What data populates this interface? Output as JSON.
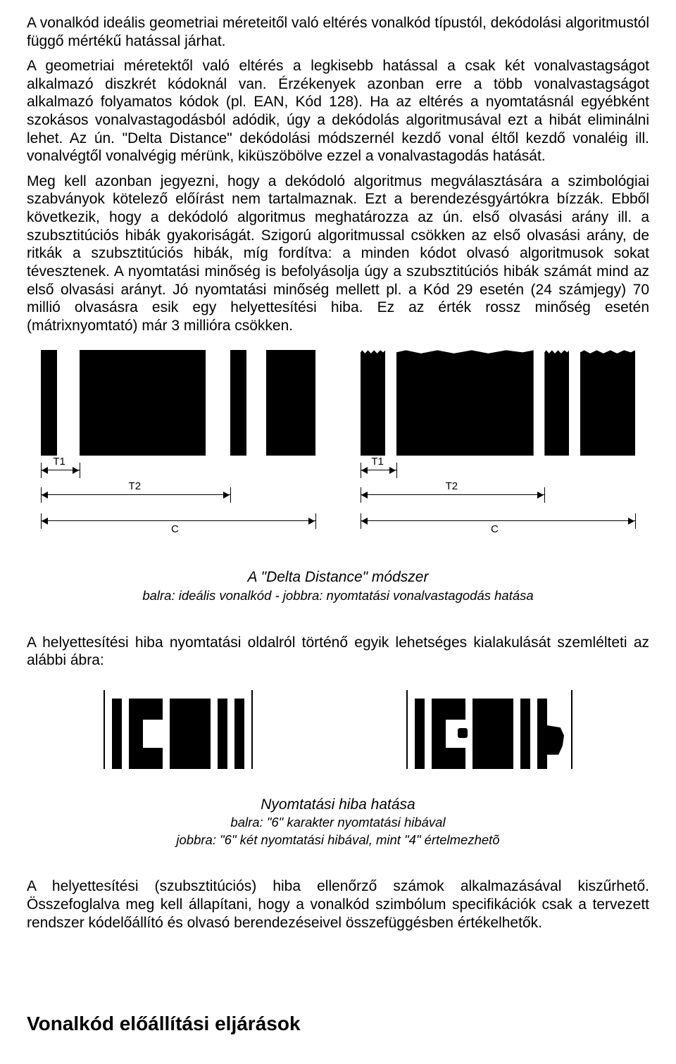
{
  "paragraph1": "A vonalkód ideális geometriai méreteitől való eltérés vonalkód típustól, dekódolási algoritmustól függő mértékű hatással járhat.",
  "paragraph2": "A geometriai méretektől való eltérés a legkisebb hatással a csak két vonalvastagságot alkalmazó diszkrét kódoknál van. Érzékenyek azonban erre a több vonalvastagságot alkalmazó folyamatos kódok (pl. EAN, Kód 128). Ha az eltérés a nyomtatásnál egyébként szokásos vonalvastagodásból adódik, úgy a dekódolás algoritmusával ezt a hibát eliminálni lehet. Az ún. \"Delta Distance\" dekódolási módszernél kezdő vonal éltől kezdő vonaléig ill. vonalvégtől vonalvégig mérünk, kiküszöbölve ezzel a vonalvastagodás hatását.",
  "paragraph3": "Meg kell azonban jegyezni, hogy a dekódoló algoritmus megválasztására a szimbológiai szabványok kötelező előírást nem tartalmaznak. Ezt a berendezésgyártókra bízzák. Ebből következik, hogy a dekódoló algoritmus meghatározza az ún. első olvasási arány ill. a szubsztitúciós hibák gyakoriságát. Szigorú algoritmussal csökken az első olvasási arány, de ritkák a szubsztitúciós hibák, míg fordítva: a minden kódot olvasó algoritmusok sokat tévesztenek. A nyomtatási minőség is befolyásolja úgy a szubsztitúciós hibák számát mind az első olvasási arányt. Jó nyomtatási minőség mellett pl. a Kód 29 esetén (24 számjegy) 70 millió olvasásra esik egy helyettesítési hiba. Ez az érték rossz minőség esetén (mátrixnyomtató) már 3 millióra csökken.",
  "deltaFigure": {
    "left": {
      "bars": [
        {
          "left_pct": 0,
          "width_pct": 6
        },
        {
          "left_pct": 14,
          "width_pct": 46
        },
        {
          "left_pct": 69,
          "width_pct": 6
        },
        {
          "left_pct": 82,
          "width_pct": 18
        }
      ],
      "t1": {
        "from_pct": 0,
        "to_pct": 14,
        "label": "T1"
      },
      "t2": {
        "from_pct": 0,
        "to_pct": 69,
        "label": "T2"
      },
      "c": {
        "from_pct": 0,
        "to_pct": 100,
        "label": "C"
      }
    },
    "right": {
      "bars": [
        {
          "left_pct": 0,
          "width_pct": 9
        },
        {
          "left_pct": 13,
          "width_pct": 50
        },
        {
          "left_pct": 67,
          "width_pct": 9
        },
        {
          "left_pct": 80,
          "width_pct": 20
        }
      ],
      "t1": {
        "from_pct": 0,
        "to_pct": 13,
        "label": "T1"
      },
      "t2": {
        "from_pct": 0,
        "to_pct": 67,
        "label": "T2"
      },
      "c": {
        "from_pct": 0,
        "to_pct": 100,
        "label": "C"
      }
    },
    "caption_title": "A \"Delta Distance\" módszer",
    "caption_sub": "balra: ideális vonalkód - jobbra: nyomtatási vonalvastagodás hatása"
  },
  "paragraph4": "A helyettesítési hiba nyomtatási oldalról történő egyik lehetséges kialakulását szemlélteti az alábbi ábra:",
  "errorFigure": {
    "caption_title": "Nyomtatási hiba hatása",
    "caption_line1": "balra: \"6\" karakter nyomtatási hibával",
    "caption_line2": "jobbra: \"6\" két nyomtatási hibával, mint \"4\" értelmezhetõ"
  },
  "paragraph5": "A helyettesítési (szubsztitúciós) hiba ellenőrző számok alkalmazásával kiszűrhető. Összefoglalva meg kell állapítani, hogy a vonalkód szimbólum specifikációk csak a tervezett rendszer kódelőállító és olvasó berendezéseivel összefüggésben értékelhetők.",
  "sectionHeading": "Vonalkód előállítási eljárások",
  "colors": {
    "ink": "#000000",
    "paper": "#ffffff"
  }
}
